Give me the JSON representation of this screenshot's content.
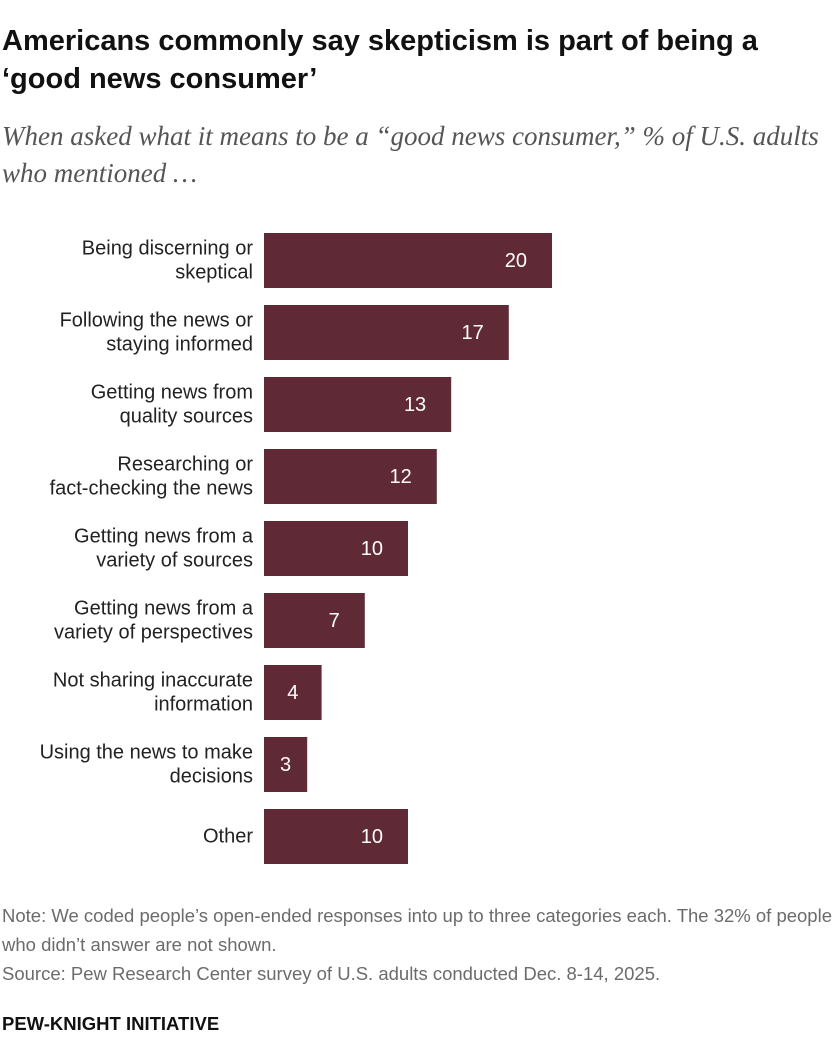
{
  "chart_data": {
    "type": "hbar",
    "title": "Americans commonly say skepticism is part of being a ‘good news consumer’",
    "subtitle": "When asked what it means to be a “good news consumer,” % of U.S. adults who mentioned …",
    "categories": [
      "Being discerning or skeptical",
      "Following the news or staying informed",
      "Getting news from quality sources",
      "Researching or fact-checking the news",
      "Getting news from a variety of sources",
      "Getting news from a variety of perspectives",
      "Not sharing inaccurate information",
      "Using the news to make decisions",
      "Other"
    ],
    "values": [
      20,
      17,
      13,
      12,
      10,
      7,
      4,
      3,
      10
    ],
    "color": "#5f2a36",
    "note": "Note: We coded people’s open-ended responses into up to three categories each. The 32% of people who didn’t answer are not shown.",
    "source": "Source: Pew Research Center survey of U.S. adults conducted Dec. 8-14, 2025.",
    "footer": "PEW-KNIGHT INITIATIVE"
  }
}
